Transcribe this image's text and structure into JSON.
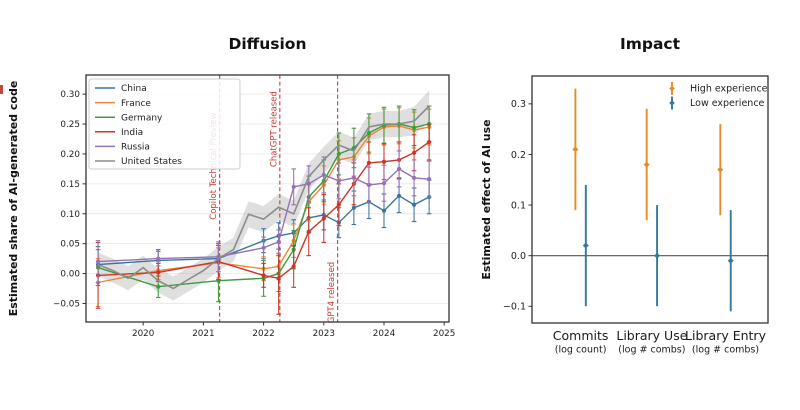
{
  "figure": {
    "background": "#ffffff",
    "left_edge_artifact_color": "#c8453c"
  },
  "chart_data": [
    {
      "type": "line",
      "title": "Diffusion",
      "ylabel": "Estimated share of AI-generated code",
      "xlim": [
        2019.05,
        2025.08
      ],
      "ylim": [
        -0.081,
        0.332
      ],
      "grid": {
        "horizontal": true,
        "color": "#f0e6e6"
      },
      "legend_position": "upper-left",
      "xticks": [
        {
          "v": 2020,
          "label": "2020"
        },
        {
          "v": 2021,
          "label": "2021"
        },
        {
          "v": 2022,
          "label": "2022"
        },
        {
          "v": 2023,
          "label": "2023"
        },
        {
          "v": 2024,
          "label": "2024"
        },
        {
          "v": 2025,
          "label": "2025"
        }
      ],
      "yticks": [
        {
          "v": -0.05,
          "label": "−0.05"
        },
        {
          "v": 0.0,
          "label": "0.00"
        },
        {
          "v": 0.05,
          "label": "0.05"
        },
        {
          "v": 0.1,
          "label": "0.10"
        },
        {
          "v": 0.15,
          "label": "0.15"
        },
        {
          "v": 0.2,
          "label": "0.20"
        },
        {
          "v": 0.25,
          "label": "0.25"
        },
        {
          "v": 0.3,
          "label": "0.30"
        }
      ],
      "event_lines": [
        {
          "label": "Copilot Technical Preview",
          "x": 2021.27,
          "label_anchor_value": 0.09,
          "color": "#c23f35"
        },
        {
          "label": "ChatGPT released",
          "x": 2022.27,
          "label_anchor_value": 0.178,
          "color": "#c23f35"
        },
        {
          "label": "GPT4 released",
          "x": 2023.23,
          "label_anchor_value": -0.083,
          "color": "#c23f35"
        }
      ],
      "series": [
        {
          "name": "China",
          "color": "#3b74a1",
          "markers": true,
          "x": [
            2019.25,
            2020.25,
            2021.25,
            2022.0,
            2022.25,
            2022.5,
            2022.75,
            2023.0,
            2023.25,
            2023.5,
            2023.75,
            2024.0,
            2024.25,
            2024.5,
            2024.75
          ],
          "y": [
            0.015,
            0.022,
            0.025,
            0.055,
            0.063,
            0.068,
            0.093,
            0.098,
            0.085,
            0.11,
            0.12,
            0.105,
            0.13,
            0.115,
            0.128
          ],
          "err": [
            0.03,
            0.018,
            0.022,
            0.02,
            0.022,
            0.022,
            0.025,
            0.025,
            0.025,
            0.028,
            0.028,
            0.028,
            0.028,
            0.028,
            0.028
          ]
        },
        {
          "name": "France",
          "color": "#ee8433",
          "markers": true,
          "x": [
            2019.25,
            2020.25,
            2021.25,
            2022.0,
            2022.25,
            2022.5,
            2022.75,
            2023.0,
            2023.25,
            2023.5,
            2023.75,
            2024.0,
            2024.25,
            2024.5,
            2024.75
          ],
          "y": [
            -0.015,
            0.005,
            0.018,
            0.008,
            0.012,
            0.055,
            0.12,
            0.148,
            0.19,
            0.195,
            0.23,
            0.245,
            0.247,
            0.24,
            0.245
          ],
          "err": [
            0.04,
            0.015,
            0.025,
            0.02,
            0.022,
            0.028,
            0.032,
            0.032,
            0.032,
            0.032,
            0.03,
            0.03,
            0.03,
            0.03,
            0.03
          ]
        },
        {
          "name": "Germany",
          "color": "#3f9b3f",
          "markers": true,
          "x": [
            2019.25,
            2020.25,
            2021.25,
            2022.0,
            2022.25,
            2022.5,
            2022.75,
            2023.0,
            2023.25,
            2023.5,
            2023.75,
            2024.0,
            2024.25,
            2024.5,
            2024.75
          ],
          "y": [
            0.01,
            -0.022,
            -0.012,
            -0.008,
            0.0,
            0.04,
            0.128,
            0.155,
            0.2,
            0.21,
            0.235,
            0.248,
            0.25,
            0.244,
            0.25
          ],
          "err": [
            0.03,
            0.018,
            0.035,
            0.03,
            0.03,
            0.032,
            0.035,
            0.035,
            0.035,
            0.033,
            0.032,
            0.03,
            0.03,
            0.03,
            0.03
          ]
        },
        {
          "name": "India",
          "color": "#cc3528",
          "markers": true,
          "x": [
            2019.25,
            2020.25,
            2021.25,
            2022.0,
            2022.25,
            2022.5,
            2022.75,
            2023.0,
            2023.25,
            2023.5,
            2023.75,
            2024.0,
            2024.25,
            2024.5,
            2024.75
          ],
          "y": [
            -0.003,
            0.002,
            0.02,
            -0.003,
            -0.008,
            0.012,
            0.07,
            0.092,
            0.115,
            0.15,
            0.185,
            0.187,
            0.19,
            0.202,
            0.22
          ],
          "err": [
            0.055,
            0.015,
            0.03,
            0.02,
            0.06,
            0.035,
            0.04,
            0.04,
            0.035,
            0.035,
            0.035,
            0.03,
            0.03,
            0.03,
            0.03
          ]
        },
        {
          "name": "Russia",
          "color": "#9571b5",
          "markers": true,
          "x": [
            2019.25,
            2020.25,
            2021.25,
            2022.0,
            2022.25,
            2022.5,
            2022.75,
            2023.0,
            2023.25,
            2023.5,
            2023.75,
            2024.0,
            2024.25,
            2024.5,
            2024.75
          ],
          "y": [
            0.02,
            0.025,
            0.028,
            0.043,
            0.053,
            0.145,
            0.15,
            0.165,
            0.155,
            0.16,
            0.148,
            0.151,
            0.175,
            0.16,
            0.158
          ],
          "err": [
            0.035,
            0.012,
            0.025,
            0.018,
            0.02,
            0.03,
            0.03,
            0.03,
            0.03,
            0.03,
            0.03,
            0.03,
            0.03,
            0.03,
            0.03
          ]
        },
        {
          "name": "United States",
          "color": "#8b8b8b",
          "markers": false,
          "x": [
            2019.25,
            2019.5,
            2019.75,
            2020.0,
            2020.25,
            2020.5,
            2020.75,
            2021.0,
            2021.25,
            2021.5,
            2021.75,
            2022.0,
            2022.25,
            2022.5,
            2022.75,
            2023.0,
            2023.25,
            2023.5,
            2023.75,
            2024.0,
            2024.25,
            2024.5,
            2024.75
          ],
          "y": [
            0.015,
            0.005,
            -0.008,
            0.01,
            -0.012,
            -0.025,
            -0.01,
            0.005,
            0.025,
            0.04,
            0.099,
            0.091,
            0.111,
            0.1,
            0.162,
            0.19,
            0.215,
            0.205,
            0.245,
            0.25,
            0.25,
            0.255,
            0.28
          ],
          "band": [
            0.02,
            0.02,
            0.02,
            0.02,
            0.02,
            0.02,
            0.02,
            0.02,
            0.02,
            0.02,
            0.022,
            0.022,
            0.022,
            0.022,
            0.022,
            0.022,
            0.022,
            0.022,
            0.022,
            0.022,
            0.022,
            0.024,
            0.026
          ]
        }
      ]
    },
    {
      "type": "scatter",
      "title": "Impact",
      "ylabel": "Estimated effect of AI use",
      "ylim": [
        -0.133,
        0.355
      ],
      "zero_line": 0,
      "legend_position": "upper-right",
      "yticks": [
        {
          "v": -0.1,
          "label": "−0.1"
        },
        {
          "v": 0.0,
          "label": "0.0"
        },
        {
          "v": 0.1,
          "label": "0.1"
        },
        {
          "v": 0.2,
          "label": "0.2"
        },
        {
          "v": 0.3,
          "label": "0.3"
        }
      ],
      "categories": [
        {
          "label": "Commits",
          "sublabel": "(log count)"
        },
        {
          "label": "Library Use",
          "sublabel": "(log # combs)"
        },
        {
          "label": "Library Entry",
          "sublabel": "(log # combs)"
        }
      ],
      "series": [
        {
          "name": "High experience",
          "color": "#e68a23",
          "values": [
            0.21,
            0.18,
            0.17
          ],
          "ci_low": [
            0.09,
            0.07,
            0.08
          ],
          "ci_high": [
            0.33,
            0.29,
            0.26
          ]
        },
        {
          "name": "Low experience",
          "color": "#34789e",
          "values": [
            0.02,
            0.0,
            -0.01
          ],
          "ci_low": [
            -0.1,
            -0.1,
            -0.11
          ],
          "ci_high": [
            0.14,
            0.1,
            0.09
          ]
        }
      ]
    }
  ]
}
